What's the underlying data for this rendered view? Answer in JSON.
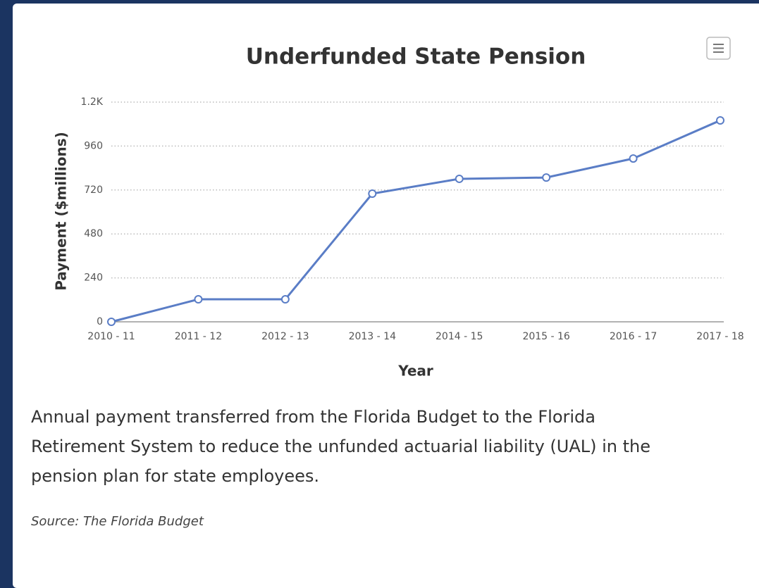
{
  "chart_data": {
    "type": "line",
    "title": "Underfunded State Pension",
    "x_label": "Year",
    "y_label": "Payment ($millions)",
    "categories": [
      "2010 - 11",
      "2011 - 12",
      "2012 - 13",
      "2013 - 14",
      "2014 - 15",
      "2015 - 16",
      "2016 - 17",
      "2017 - 18"
    ],
    "values": [
      0,
      123,
      123,
      700,
      781,
      788,
      892,
      1100
    ],
    "color": "#5a7dc6",
    "ylim": [
      0,
      1200
    ],
    "yticks": [
      0,
      240,
      480,
      720,
      960,
      {
        "value": 1200,
        "label": "1.2K"
      }
    ],
    "grid": true
  },
  "description": [
    "Annual payment transferred from the Florida Budget to the Florida",
    "Retirement System to reduce the unfunded actuarial liability (UAL) in the",
    "pension plan for state employees."
  ],
  "source": "Source: The Florida Budget"
}
